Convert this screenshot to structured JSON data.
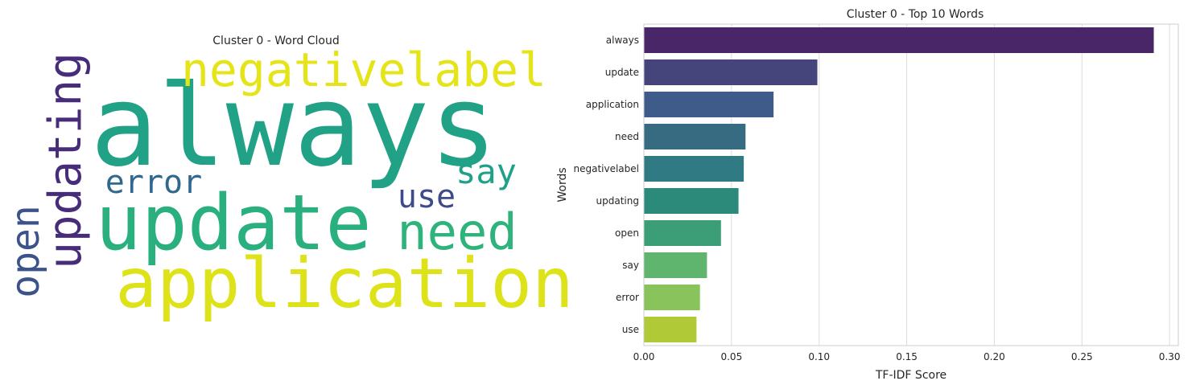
{
  "chart_data": [
    {
      "type": "wordcloud",
      "title": "Cluster 0 - Word Cloud",
      "words": [
        {
          "text": "always",
          "weight": 0.291,
          "color": "#21a185"
        },
        {
          "text": "update",
          "weight": 0.099,
          "color": "#2ab07f"
        },
        {
          "text": "application",
          "weight": 0.074,
          "color": "#dde318"
        },
        {
          "text": "need",
          "weight": 0.058,
          "color": "#2eb37c"
        },
        {
          "text": "negativelabel",
          "weight": 0.057,
          "color": "#e5e419"
        },
        {
          "text": "updating",
          "weight": 0.054,
          "color": "#472c7a"
        },
        {
          "text": "open",
          "weight": 0.044,
          "color": "#3b528b"
        },
        {
          "text": "say",
          "weight": 0.036,
          "color": "#1fa188"
        },
        {
          "text": "error",
          "weight": 0.032,
          "color": "#31688e"
        },
        {
          "text": "use",
          "weight": 0.03,
          "color": "#3e4a89"
        }
      ]
    },
    {
      "type": "bar",
      "orientation": "horizontal",
      "title": "Cluster 0 - Top 10 Words",
      "xlabel": "TF-IDF Score",
      "ylabel": "Words",
      "categories": [
        "always",
        "update",
        "application",
        "need",
        "negativelabel",
        "updating",
        "open",
        "say",
        "error",
        "use"
      ],
      "values": [
        0.291,
        0.099,
        0.074,
        0.058,
        0.057,
        0.054,
        0.044,
        0.036,
        0.032,
        0.03
      ],
      "colors": [
        "#482667",
        "#46457b",
        "#3e5b8a",
        "#366b81",
        "#2f7a83",
        "#2b8a79",
        "#3b9e76",
        "#5fb56e",
        "#88c35c",
        "#b0c936"
      ],
      "xlim": [
        0,
        0.305
      ],
      "xticks": [
        "0.00",
        "0.05",
        "0.10",
        "0.15",
        "0.20",
        "0.25",
        "0.30"
      ],
      "xtick_values": [
        0,
        0.05,
        0.1,
        0.15,
        0.2,
        0.25,
        0.3
      ],
      "grid": "vertical"
    }
  ]
}
